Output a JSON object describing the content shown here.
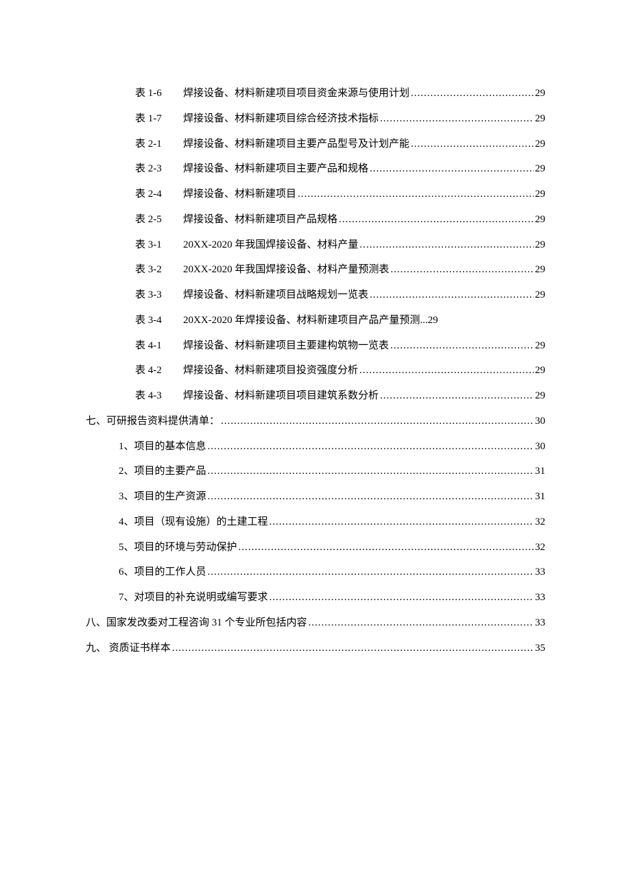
{
  "toc": {
    "entries": [
      {
        "indent": 3,
        "table_label": "表 1-6",
        "text": "焊接设备、材料新建项目项目资金来源与使用计划",
        "page": "29"
      },
      {
        "indent": 3,
        "table_label": "表 1-7",
        "text": "焊接设备、材料新建项目综合经济技术指标",
        "page": "29"
      },
      {
        "indent": 3,
        "table_label": "表 2-1",
        "text": "焊接设备、材料新建项目主要产品型号及计划产能",
        "page": "29"
      },
      {
        "indent": 3,
        "table_label": "表 2-3",
        "text": "焊接设备、材料新建项目主要产品和规格",
        "page": "29"
      },
      {
        "indent": 3,
        "table_label": "表 2-4",
        "text": "焊接设备、材料新建项目",
        "page": "29"
      },
      {
        "indent": 3,
        "table_label": "表 2-5",
        "text": "焊接设备、材料新建项目产品规格",
        "page": "29"
      },
      {
        "indent": 3,
        "table_label": "表 3-1",
        "text": "20XX-2020 年我国焊接设备、材料产量 ",
        "page": "29"
      },
      {
        "indent": 3,
        "table_label": "表 3-2",
        "text": "20XX-2020 年我国焊接设备、材料产量预测表 ",
        "page": "29"
      },
      {
        "indent": 3,
        "table_label": "表 3-3",
        "text": "焊接设备、材料新建项目战略规划一览表",
        "page": "29"
      },
      {
        "indent": 3,
        "table_label": "表 3-4",
        "text": "20XX-2020 年焊接设备、材料新建项目产品产量预测 ",
        "page": "29",
        "no_leader": true
      },
      {
        "indent": 3,
        "table_label": "表 4-1",
        "text": "焊接设备、材料新建项目主要建构筑物一览表",
        "page": "29"
      },
      {
        "indent": 3,
        "table_label": "表 4-2",
        "text": "焊接设备、材料新建项目投资强度分析",
        "page": "29"
      },
      {
        "indent": 3,
        "table_label": "表 4-3",
        "text": "焊接设备、材料新建项目项目建筑系数分析",
        "page": "29"
      },
      {
        "indent": 1,
        "text": "七、可研报告资料提供清单： ",
        "page": "30"
      },
      {
        "indent": 2,
        "text": "1、项目的基本信息 ",
        "page": "30"
      },
      {
        "indent": 2,
        "text": "2、项目的主要产品 ",
        "page": "31"
      },
      {
        "indent": 2,
        "text": "3、项目的生产资源 ",
        "page": "31"
      },
      {
        "indent": 2,
        "text": "4、项目（现有设施）的土建工程 ",
        "page": "32"
      },
      {
        "indent": 2,
        "text": "5、项目的环境与劳动保护 ",
        "page": "32"
      },
      {
        "indent": 2,
        "text": "6、项目的工作人员 ",
        "page": "33"
      },
      {
        "indent": 2,
        "text": "7、对项目的补充说明或编写要求 ",
        "page": "33"
      },
      {
        "indent": 1,
        "text": "八、国家发改委对工程咨询 31 个专业所包括内容 ",
        "page": "33"
      },
      {
        "indent": 1,
        "text": "九、  资质证书样本 ",
        "page": "35"
      }
    ]
  }
}
